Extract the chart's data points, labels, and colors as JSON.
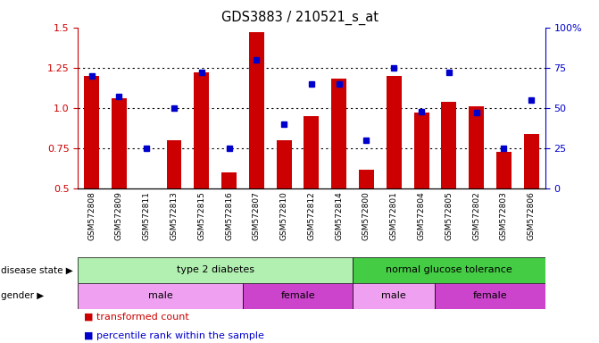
{
  "title": "GDS3883 / 210521_s_at",
  "samples": [
    "GSM572808",
    "GSM572809",
    "GSM572811",
    "GSM572813",
    "GSM572815",
    "GSM572816",
    "GSM572807",
    "GSM572810",
    "GSM572812",
    "GSM572814",
    "GSM572800",
    "GSM572801",
    "GSM572804",
    "GSM572805",
    "GSM572802",
    "GSM572803",
    "GSM572806"
  ],
  "bar_values": [
    1.2,
    1.06,
    0.5,
    0.8,
    1.22,
    0.6,
    1.47,
    0.8,
    0.95,
    1.18,
    0.62,
    1.2,
    0.97,
    1.04,
    1.01,
    0.73,
    0.84
  ],
  "dot_values": [
    70,
    57,
    25,
    50,
    72,
    25,
    80,
    40,
    65,
    65,
    30,
    75,
    48,
    72,
    47,
    25,
    55
  ],
  "bar_color": "#cc0000",
  "dot_color": "#0000cc",
  "ylim_left": [
    0.5,
    1.5
  ],
  "ylim_right": [
    0,
    100
  ],
  "yticks_left": [
    0.5,
    0.75,
    1.0,
    1.25,
    1.5
  ],
  "yticks_right": [
    0,
    25,
    50,
    75,
    100
  ],
  "disease_state_groups": [
    {
      "label": "type 2 diabetes",
      "start": 0,
      "end": 10,
      "color": "#b2f0b2"
    },
    {
      "label": "normal glucose tolerance",
      "start": 10,
      "end": 17,
      "color": "#44cc44"
    }
  ],
  "gender_groups": [
    {
      "label": "male",
      "start": 0,
      "end": 6,
      "color": "#f0a0f0"
    },
    {
      "label": "female",
      "start": 6,
      "end": 10,
      "color": "#cc44cc"
    },
    {
      "label": "male",
      "start": 10,
      "end": 13,
      "color": "#f0a0f0"
    },
    {
      "label": "female",
      "start": 13,
      "end": 17,
      "color": "#cc44cc"
    }
  ],
  "legend_bar_label": "transformed count",
  "legend_dot_label": "percentile rank within the sample",
  "disease_label": "disease state",
  "gender_label": "gender",
  "fig_width": 6.71,
  "fig_height": 3.84
}
